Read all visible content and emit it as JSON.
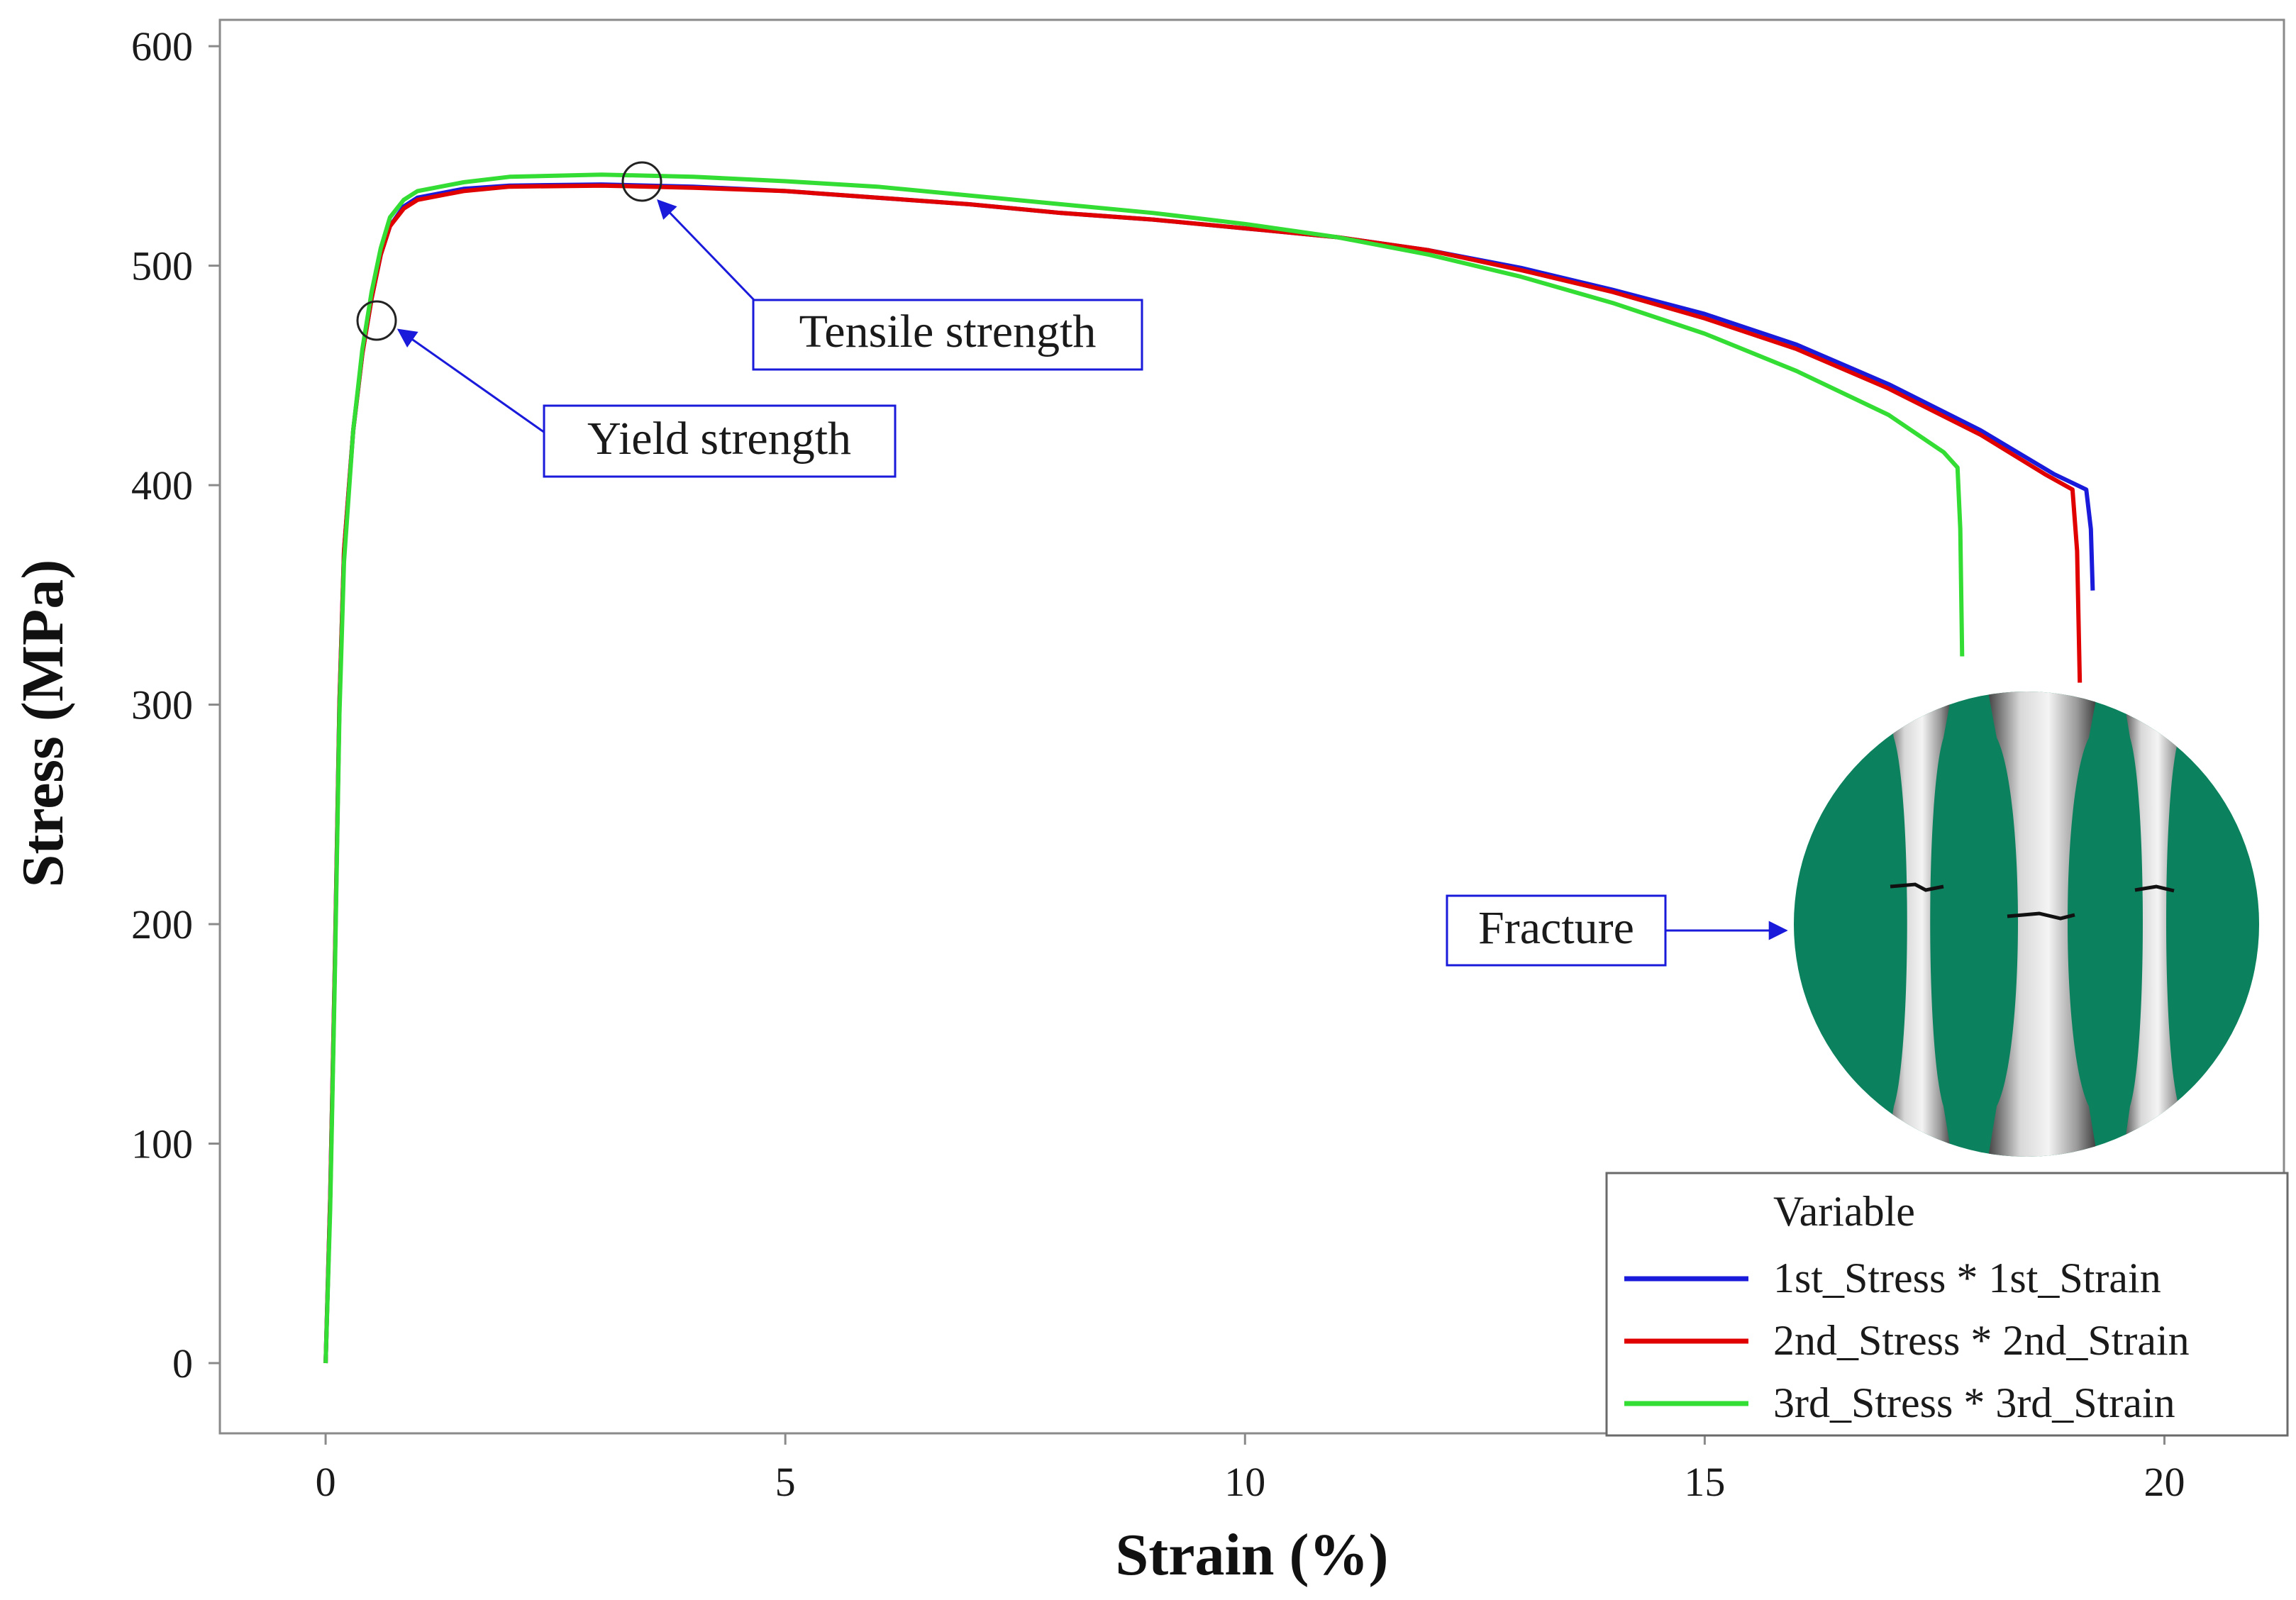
{
  "chart_data": {
    "type": "line",
    "title": "",
    "xlabel": "Strain (%)",
    "ylabel": "Stress (MPa)",
    "xlim": [
      -1.15,
      21.3
    ],
    "ylim": [
      -32,
      612
    ],
    "xticks": [
      0,
      5,
      10,
      15,
      20
    ],
    "yticks": [
      0,
      100,
      200,
      300,
      400,
      500,
      600
    ],
    "grid": false,
    "legend": {
      "title": "Variable",
      "position": "bottom-right",
      "entries": [
        "1st_Stress * 1st_Strain",
        "2nd_Stress * 2nd_Strain",
        "3rd_Stress * 3rd_Strain"
      ]
    },
    "series": [
      {
        "name": "1st_Stress * 1st_Strain",
        "color": "#1a1adb",
        "points": [
          [
            0,
            0
          ],
          [
            0.05,
            75
          ],
          [
            0.1,
            180
          ],
          [
            0.15,
            300
          ],
          [
            0.2,
            370
          ],
          [
            0.3,
            425
          ],
          [
            0.4,
            460
          ],
          [
            0.5,
            485
          ],
          [
            0.6,
            505
          ],
          [
            0.7,
            518
          ],
          [
            0.85,
            527
          ],
          [
            1.0,
            531
          ],
          [
            1.5,
            535
          ],
          [
            2.0,
            536.5
          ],
          [
            3.0,
            537
          ],
          [
            4.0,
            536
          ],
          [
            5.0,
            534
          ],
          [
            6.0,
            531
          ],
          [
            7.0,
            528
          ],
          [
            8.0,
            524
          ],
          [
            9.0,
            521
          ],
          [
            10.0,
            517
          ],
          [
            11.0,
            513
          ],
          [
            12.0,
            507
          ],
          [
            13.0,
            499
          ],
          [
            14.0,
            489
          ],
          [
            15.0,
            478
          ],
          [
            16.0,
            464
          ],
          [
            17.0,
            446
          ],
          [
            18.0,
            425
          ],
          [
            18.8,
            405
          ],
          [
            19.15,
            398
          ],
          [
            19.2,
            380
          ],
          [
            19.22,
            352
          ]
        ]
      },
      {
        "name": "2nd_Stress * 2nd_Strain",
        "color": "#e00000",
        "points": [
          [
            0,
            0
          ],
          [
            0.05,
            75
          ],
          [
            0.1,
            180
          ],
          [
            0.15,
            300
          ],
          [
            0.2,
            370
          ],
          [
            0.3,
            425
          ],
          [
            0.4,
            460
          ],
          [
            0.5,
            485
          ],
          [
            0.6,
            505
          ],
          [
            0.7,
            518
          ],
          [
            0.85,
            526
          ],
          [
            1.0,
            530
          ],
          [
            1.5,
            534
          ],
          [
            2.0,
            536
          ],
          [
            3.0,
            536.5
          ],
          [
            4.0,
            535.5
          ],
          [
            5.0,
            534
          ],
          [
            6.0,
            531
          ],
          [
            7.0,
            528
          ],
          [
            8.0,
            524
          ],
          [
            9.0,
            521
          ],
          [
            10.0,
            517
          ],
          [
            11.0,
            513
          ],
          [
            12.0,
            507
          ],
          [
            13.0,
            498
          ],
          [
            14.0,
            488
          ],
          [
            15.0,
            476
          ],
          [
            16.0,
            462
          ],
          [
            17.0,
            444
          ],
          [
            18.0,
            423
          ],
          [
            18.7,
            405
          ],
          [
            19.0,
            398
          ],
          [
            19.05,
            370
          ],
          [
            19.08,
            310
          ]
        ]
      },
      {
        "name": "3rd_Stress * 3rd_Strain",
        "color": "#33dd33",
        "points": [
          [
            0,
            0
          ],
          [
            0.05,
            70
          ],
          [
            0.1,
            175
          ],
          [
            0.15,
            295
          ],
          [
            0.2,
            365
          ],
          [
            0.3,
            425
          ],
          [
            0.4,
            462
          ],
          [
            0.5,
            488
          ],
          [
            0.6,
            508
          ],
          [
            0.7,
            522
          ],
          [
            0.85,
            530
          ],
          [
            1.0,
            534
          ],
          [
            1.5,
            538
          ],
          [
            2.0,
            540.5
          ],
          [
            3.0,
            541.5
          ],
          [
            4.0,
            540.5
          ],
          [
            5.0,
            538.5
          ],
          [
            6.0,
            536
          ],
          [
            7.0,
            532
          ],
          [
            8.0,
            528
          ],
          [
            9.0,
            524
          ],
          [
            10.0,
            519
          ],
          [
            11.0,
            513
          ],
          [
            12.0,
            505
          ],
          [
            13.0,
            495
          ],
          [
            14.0,
            483
          ],
          [
            15.0,
            469
          ],
          [
            16.0,
            452
          ],
          [
            17.0,
            432
          ],
          [
            17.6,
            415
          ],
          [
            17.75,
            408
          ],
          [
            17.78,
            380
          ],
          [
            17.8,
            322
          ]
        ]
      }
    ],
    "annotations": [
      {
        "text": "Tensile strength",
        "marker": [
          3.3,
          537
        ],
        "label_at": [
          6.4,
          470
        ]
      },
      {
        "text": "Yield strength",
        "marker": [
          0.5,
          475
        ],
        "label_at": [
          4.1,
          421
        ]
      },
      {
        "text": "Fracture",
        "label_at": [
          12.8,
          197
        ]
      }
    ]
  }
}
